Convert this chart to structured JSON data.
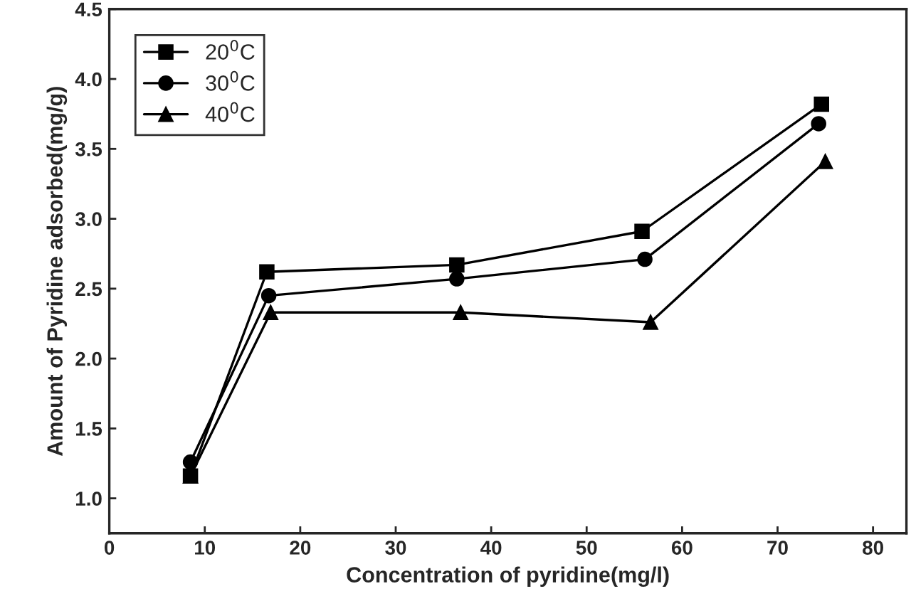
{
  "chart_data": {
    "type": "line",
    "xlabel": "Concentration of pyridine(mg/l)",
    "ylabel": "Amount of Pyridine adsorbed(mg/g)",
    "xlim": [
      0,
      83.5
    ],
    "xticks": [
      0,
      10,
      20,
      30,
      40,
      50,
      60,
      70,
      80
    ],
    "ylim": [
      0.75,
      4.5
    ],
    "yticks": [
      {
        "value": 1,
        "label": "1.0"
      },
      1.5,
      {
        "value": 2,
        "label": "2.0"
      },
      2.5,
      {
        "value": 3,
        "label": "3.0"
      },
      3.5,
      {
        "value": 4,
        "label": "4.0"
      },
      4.5
    ],
    "legend": "top left",
    "grid": false,
    "line_style": "solid",
    "series": [
      {
        "name": "20$^{0}$C",
        "color": "#000000",
        "marker": "square",
        "x": [
          8.5,
          16.5,
          36.4,
          55.8,
          74.6
        ],
        "values": [
          1.16,
          2.62,
          2.67,
          2.91,
          3.82
        ]
      },
      {
        "name": "30$^{0}$C",
        "color": "#000000",
        "marker": "circle",
        "x": [
          8.5,
          16.7,
          36.4,
          56.1,
          74.3
        ],
        "values": [
          1.26,
          2.45,
          2.57,
          2.71,
          3.68
        ]
      },
      {
        "name": "40$^{0}$C",
        "color": "#000000",
        "marker": "triangle",
        "x": [
          8.5,
          16.9,
          36.8,
          56.7,
          75.0
        ],
        "values": [
          1.16,
          2.33,
          2.33,
          2.26,
          3.41
        ]
      }
    ]
  }
}
